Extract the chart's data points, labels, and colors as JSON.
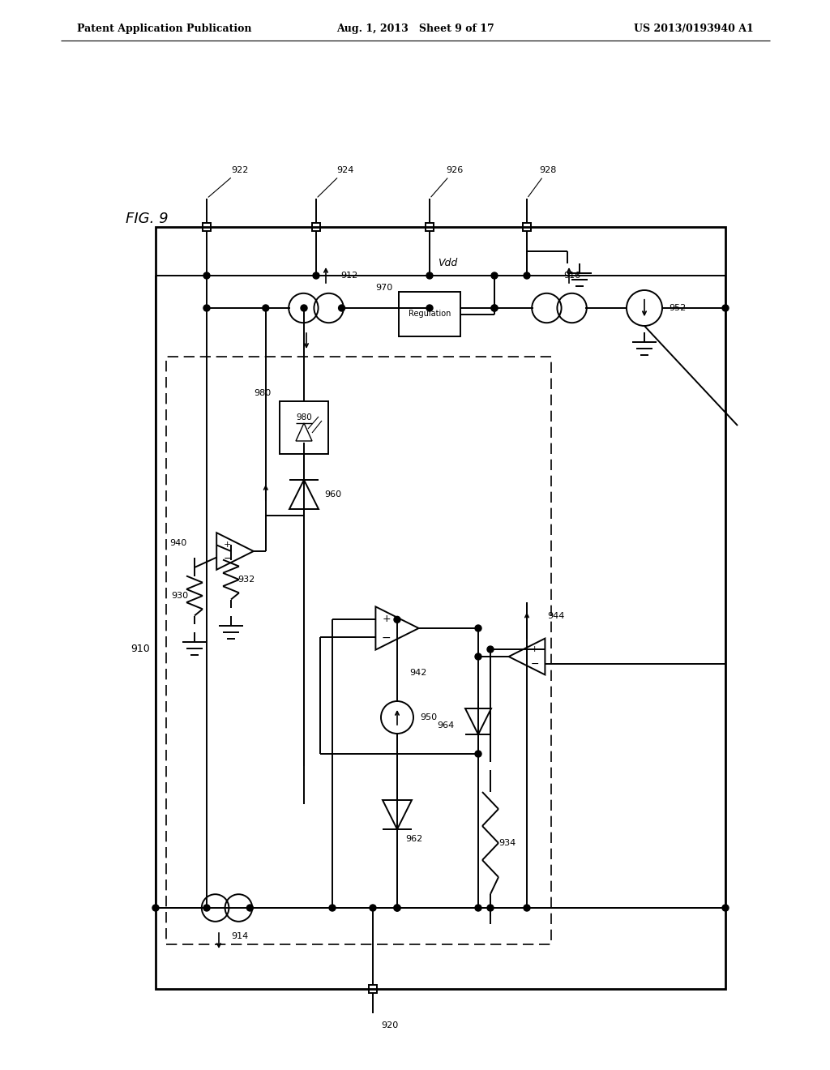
{
  "title_left": "Patent Application Publication",
  "title_center": "Aug. 1, 2013   Sheet 9 of 17",
  "title_right": "US 2013/0193940 A1",
  "background_color": "#ffffff"
}
